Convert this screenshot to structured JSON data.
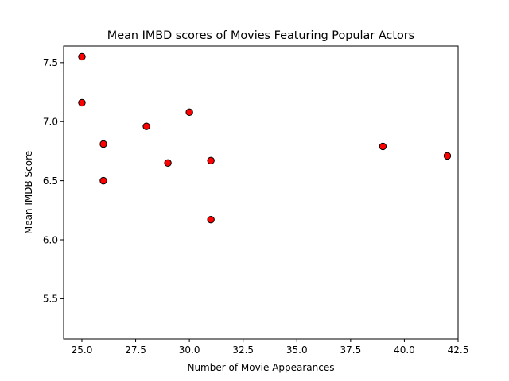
{
  "chart_data": {
    "type": "scatter",
    "title": "Mean IMBD scores of Movies Featuring Popular Actors",
    "xlabel": "Number of Movie Appearances",
    "ylabel": "Mean IMDB Score",
    "xlim": [
      24.15,
      42.5
    ],
    "ylim": [
      5.16,
      7.64
    ],
    "xticks": [
      25.0,
      27.5,
      30.0,
      32.5,
      35.0,
      37.5,
      40.0,
      42.5
    ],
    "xtick_labels": [
      "25.0",
      "27.5",
      "30.0",
      "32.5",
      "35.0",
      "37.5",
      "40.0",
      "42.5"
    ],
    "yticks": [
      5.5,
      6.0,
      6.5,
      7.0,
      7.5
    ],
    "ytick_labels": [
      "5.5",
      "6.0",
      "6.5",
      "7.0",
      "7.5"
    ],
    "grid": false,
    "points": [
      {
        "x": 25,
        "y": 7.55
      },
      {
        "x": 25,
        "y": 7.16
      },
      {
        "x": 26,
        "y": 6.81
      },
      {
        "x": 26,
        "y": 6.5
      },
      {
        "x": 28,
        "y": 6.96
      },
      {
        "x": 29,
        "y": 6.65
      },
      {
        "x": 30,
        "y": 7.08
      },
      {
        "x": 31,
        "y": 6.67
      },
      {
        "x": 31,
        "y": 6.17
      },
      {
        "x": 39,
        "y": 6.79
      },
      {
        "x": 42,
        "y": 6.71
      }
    ],
    "marker_fill": "#ff0000",
    "marker_edge": "#000000"
  }
}
